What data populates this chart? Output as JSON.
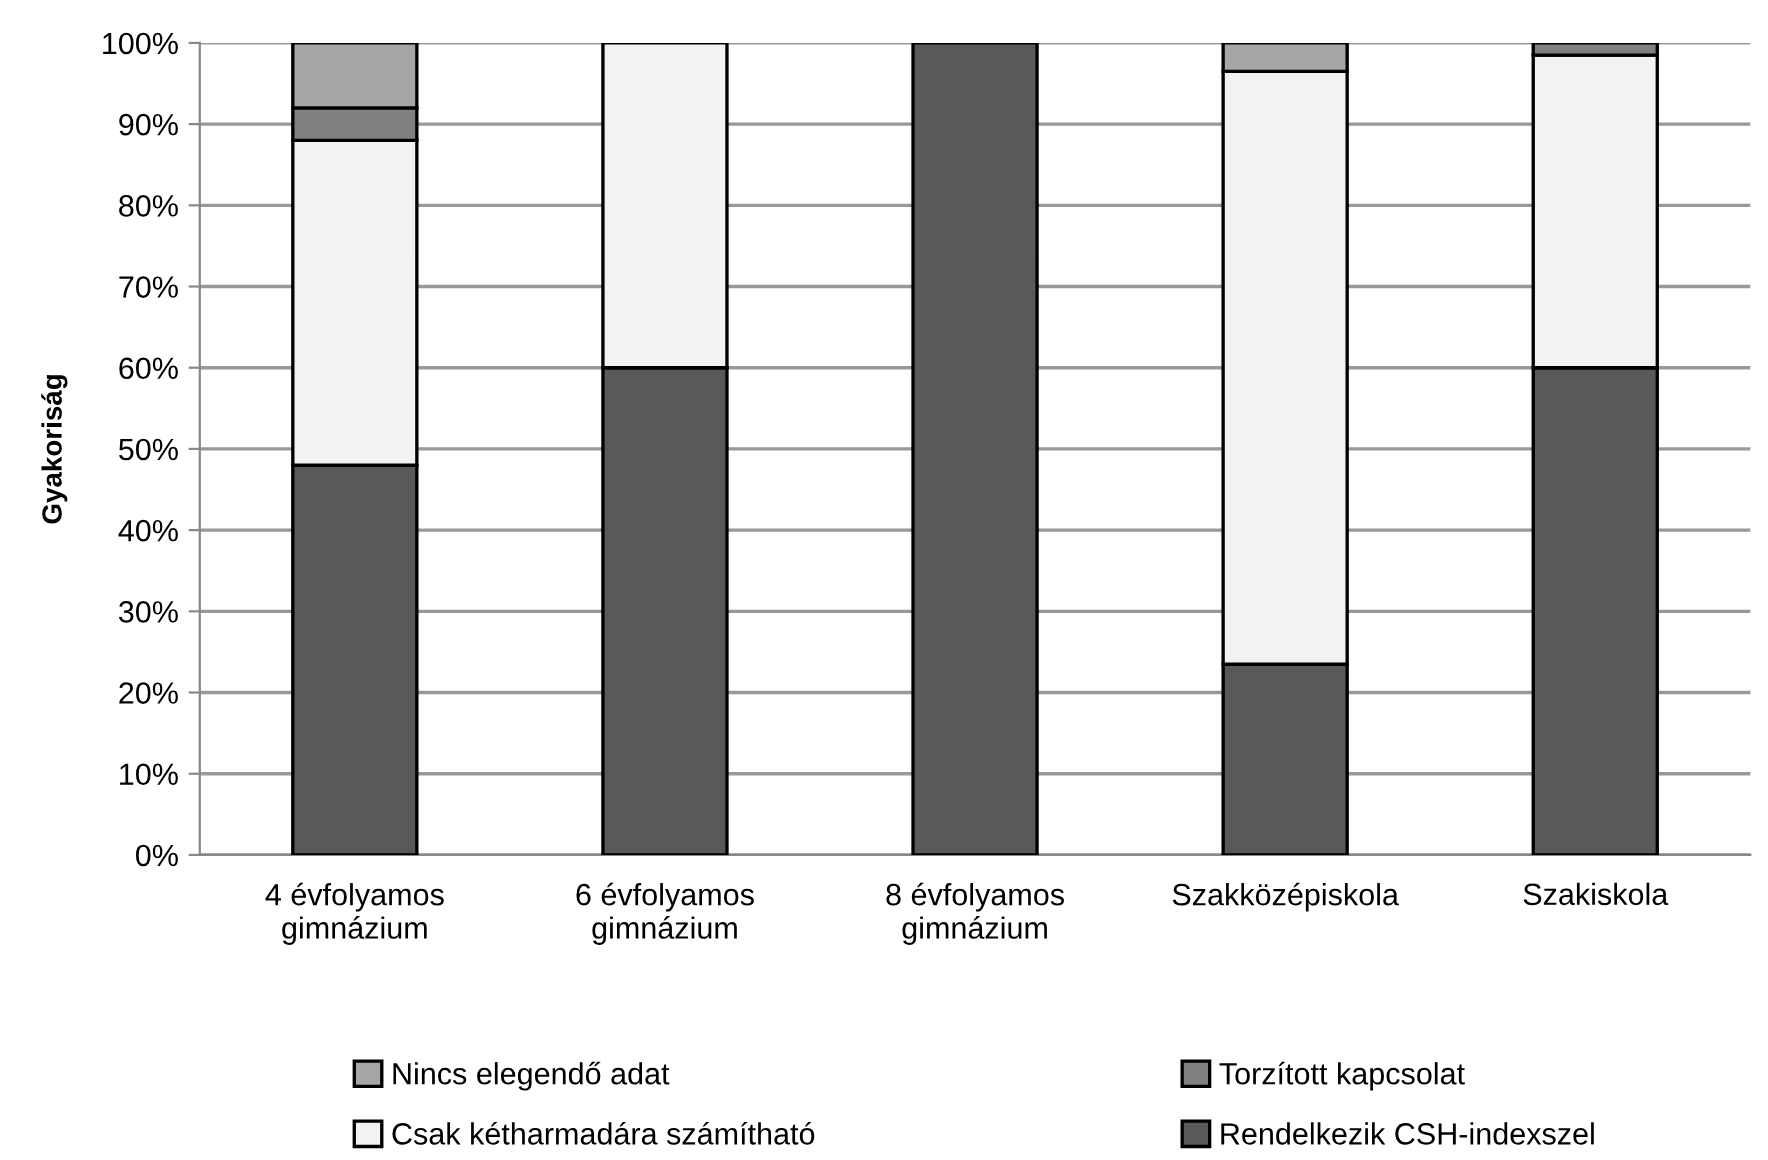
{
  "chart_data": {
    "type": "bar",
    "stacked": true,
    "ylabel": "Gyakoriság",
    "categories": [
      "4 évfolyamos\ngimnázium",
      "6 évfolyamos\ngimnázium",
      "8 évfolyamos\ngimnázium",
      "Szakközépiskola",
      "Szakiskola"
    ],
    "series": [
      {
        "name": "Rendelkezik CSH-indexszel",
        "color": "#595959",
        "values": [
          48,
          60,
          100,
          23.5,
          60
        ]
      },
      {
        "name": "Csak kétharmadára számítható",
        "color": "#f2f2f2",
        "values": [
          40,
          40,
          null,
          73,
          38.5
        ]
      },
      {
        "name": "Torzított kapcsolat",
        "color": "#808080",
        "values": [
          4,
          null,
          null,
          null,
          1.5
        ]
      },
      {
        "name": "Nincs elegendő adat",
        "color": "#a6a6a6",
        "values": [
          8,
          null,
          null,
          3.5,
          null
        ]
      }
    ],
    "ylim": [
      0,
      100
    ],
    "yticks": [
      {
        "value": 0,
        "label": "0%"
      },
      {
        "value": 10,
        "label": "10%"
      },
      {
        "value": 20,
        "label": "20%"
      },
      {
        "value": 30,
        "label": "30%"
      },
      {
        "value": 40,
        "label": "40%"
      },
      {
        "value": 50,
        "label": "50%"
      },
      {
        "value": 60,
        "label": "60%"
      },
      {
        "value": 70,
        "label": "70%"
      },
      {
        "value": 80,
        "label": "80%"
      },
      {
        "value": 90,
        "label": "90%"
      },
      {
        "value": 100,
        "label": "100%"
      }
    ],
    "grid": "y",
    "legend": "bottom"
  }
}
